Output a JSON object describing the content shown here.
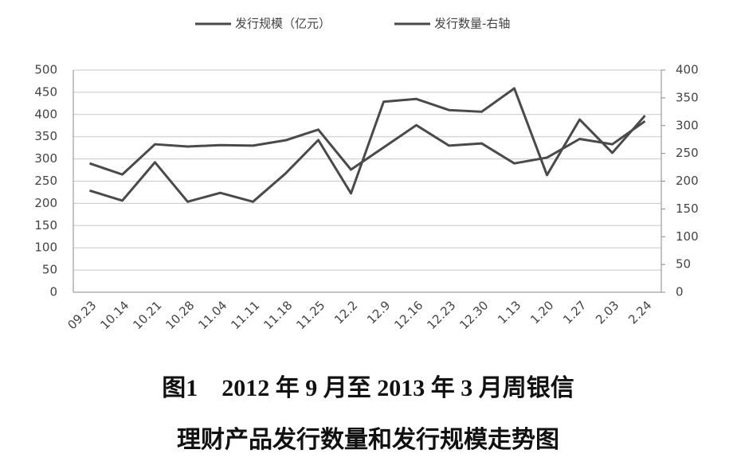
{
  "chart_data": {
    "type": "line",
    "caption_lines": [
      "图1　2012 年 9 月至 2013 年 3 月周银信",
      "理财产品发行数量和发行规模走势图"
    ],
    "categories": [
      "09.23",
      "10.14",
      "10.21",
      "10.28",
      "11.04",
      "11.11",
      "11.18",
      "11.25",
      "12.2",
      "12.9",
      "12.16",
      "12.23",
      "12.30",
      "1.13",
      "1.20",
      "1.27",
      "2.03",
      "2.24"
    ],
    "series": [
      {
        "name": "发行规模（亿元）",
        "color": "#4a4a4a",
        "values": [
          290,
          265,
          333,
          328,
          331,
          330,
          342,
          366,
          276,
          326,
          376,
          330,
          335,
          290,
          303,
          345,
          333,
          385
        ]
      },
      {
        "name": "发行数量-右轴",
        "color": "#4a4a4a",
        "axis": "y2",
        "values": [
          183,
          165,
          234,
          163,
          179,
          163,
          214,
          274,
          178,
          343,
          348,
          328,
          325,
          367,
          211,
          311,
          251,
          318
        ]
      }
    ],
    "ylim": [
      0,
      500
    ],
    "yticks": [
      0,
      50,
      100,
      150,
      200,
      250,
      300,
      350,
      400,
      450,
      500
    ],
    "y2lim": [
      0,
      400
    ],
    "y2ticks": [
      0,
      50,
      100,
      150,
      200,
      250,
      300,
      350,
      400
    ],
    "grid": true
  }
}
